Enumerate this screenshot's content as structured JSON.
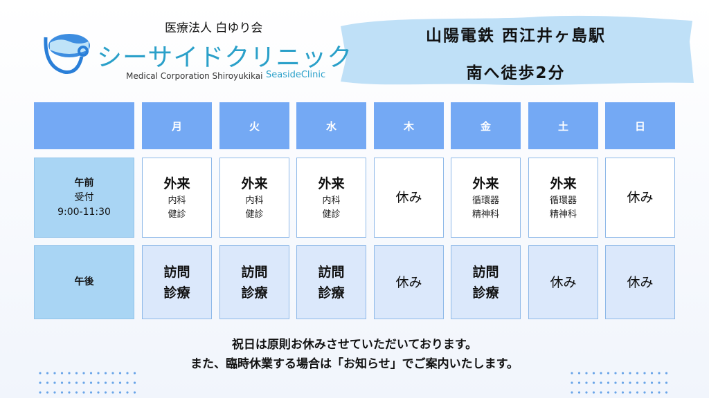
{
  "header": {
    "org": "医療法人 白ゆり会",
    "name": "シーサイドクリニック",
    "sub": "Medical Corporation Shiroyukikai",
    "brand": "SeasideClinic"
  },
  "station": {
    "line1": "山陽電鉄 西江井ヶ島駅",
    "line2": "南へ徒歩2分"
  },
  "table": {
    "days": [
      "月",
      "火",
      "水",
      "木",
      "金",
      "土",
      "日"
    ],
    "rows": [
      {
        "label": [
          "午前",
          "受付",
          "9:00-11:30"
        ],
        "cells": [
          {
            "title": [
              "外来"
            ],
            "sub": [
              "内科",
              "健診"
            ]
          },
          {
            "title": [
              "外来"
            ],
            "sub": [
              "内科",
              "健診"
            ]
          },
          {
            "title": [
              "外来"
            ],
            "sub": [
              "内科",
              "健診"
            ]
          },
          {
            "title": [
              "休み"
            ],
            "sub": []
          },
          {
            "title": [
              "外来"
            ],
            "sub": [
              "循環器",
              "精神科"
            ]
          },
          {
            "title": [
              "外来"
            ],
            "sub": [
              "循環器",
              "精神科"
            ]
          },
          {
            "title": [
              "休み"
            ],
            "sub": []
          }
        ]
      },
      {
        "label": [
          "午後"
        ],
        "cells": [
          {
            "title": [
              "訪問",
              "診療"
            ],
            "sub": []
          },
          {
            "title": [
              "訪問",
              "診療"
            ],
            "sub": []
          },
          {
            "title": [
              "訪問",
              "診療"
            ],
            "sub": []
          },
          {
            "title": [
              "休み"
            ],
            "sub": []
          },
          {
            "title": [
              "訪問",
              "診療"
            ],
            "sub": []
          },
          {
            "title": [
              "休み"
            ],
            "sub": []
          },
          {
            "title": [
              "休み"
            ],
            "sub": []
          }
        ]
      }
    ]
  },
  "notes": [
    "祝日は原則お休みさせていただいております。",
    "また、臨時休業する場合は「お知らせ」でご案内いたします。"
  ]
}
